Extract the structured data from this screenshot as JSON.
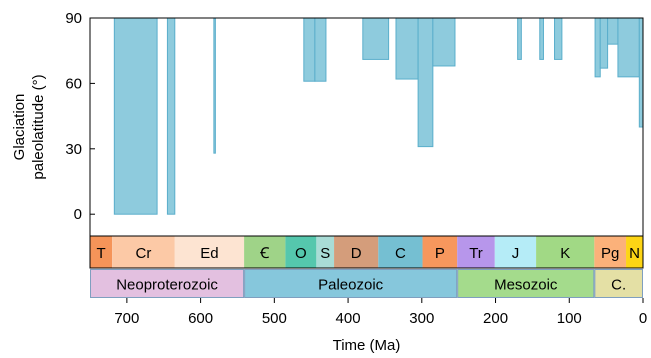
{
  "chart_data": {
    "type": "area",
    "xlabel": "Time (Ma)",
    "ylabel": [
      "Glaciation",
      "paleolatitude (°)"
    ],
    "xlim": [
      750,
      0
    ],
    "ylim": [
      -10,
      90
    ],
    "x_ticks": [
      700,
      600,
      500,
      400,
      300,
      200,
      100,
      0
    ],
    "y_ticks": [
      0,
      30,
      60,
      90
    ],
    "fill_color": "#8ecbdd",
    "edge_color": "#5aaecb",
    "glaciations": [
      {
        "start": 717,
        "end": 659,
        "min_lat": 0
      },
      {
        "start": 645,
        "end": 635,
        "min_lat": 0
      },
      {
        "start": 582,
        "end": 580,
        "min_lat": 28
      },
      {
        "start": 460,
        "end": 445,
        "min_lat": 61
      },
      {
        "start": 445,
        "end": 430,
        "min_lat": 61
      },
      {
        "start": 380,
        "end": 345,
        "min_lat": 71
      },
      {
        "start": 335,
        "end": 305,
        "min_lat": 62
      },
      {
        "start": 305,
        "end": 285,
        "min_lat": 31
      },
      {
        "start": 285,
        "end": 255,
        "min_lat": 68
      },
      {
        "start": 170,
        "end": 165,
        "min_lat": 71
      },
      {
        "start": 140,
        "end": 135,
        "min_lat": 71
      },
      {
        "start": 120,
        "end": 110,
        "min_lat": 71
      },
      {
        "start": 65,
        "end": 58,
        "min_lat": 63
      },
      {
        "start": 58,
        "end": 48,
        "min_lat": 67
      },
      {
        "start": 48,
        "end": 34,
        "min_lat": 78
      },
      {
        "start": 34,
        "end": 5,
        "min_lat": 63
      },
      {
        "start": 5,
        "end": 0,
        "min_lat": 40
      }
    ],
    "periods": [
      {
        "label": "T",
        "start": 750,
        "end": 720,
        "color": "#f59459"
      },
      {
        "label": "Cr",
        "start": 720,
        "end": 635,
        "color": "#fcc9a6"
      },
      {
        "label": "Ed",
        "start": 635,
        "end": 541,
        "color": "#fde4d2"
      },
      {
        "label": "Ꞓ",
        "start": 541,
        "end": 485,
        "color": "#9fd388"
      },
      {
        "label": "O",
        "start": 485,
        "end": 443,
        "color": "#55c7ad"
      },
      {
        "label": "S",
        "start": 443,
        "end": 419,
        "color": "#a9dcd6"
      },
      {
        "label": "D",
        "start": 419,
        "end": 359,
        "color": "#d49d7b"
      },
      {
        "label": "C",
        "start": 359,
        "end": 299,
        "color": "#75bfd2"
      },
      {
        "label": "P",
        "start": 299,
        "end": 252,
        "color": "#f7975d"
      },
      {
        "label": "Tr",
        "start": 252,
        "end": 201,
        "color": "#b796eb"
      },
      {
        "label": "J",
        "start": 201,
        "end": 145,
        "color": "#b5ecf7"
      },
      {
        "label": "K",
        "start": 145,
        "end": 66,
        "color": "#a1d985"
      },
      {
        "label": "Pg",
        "start": 66,
        "end": 23,
        "color": "#fbb17a"
      },
      {
        "label": "N",
        "start": 23,
        "end": 0,
        "color": "#fdd515"
      }
    ],
    "eras": [
      {
        "label": "Neoproterozoic",
        "start": 750,
        "end": 541,
        "color": "#e3c0e0"
      },
      {
        "label": "Paleozoic",
        "start": 541,
        "end": 252,
        "color": "#86c7dc"
      },
      {
        "label": "Mesozoic",
        "start": 252,
        "end": 66,
        "color": "#a4db8c"
      },
      {
        "label": "C.",
        "start": 66,
        "end": 0,
        "color": "#e4e0a5"
      }
    ]
  }
}
